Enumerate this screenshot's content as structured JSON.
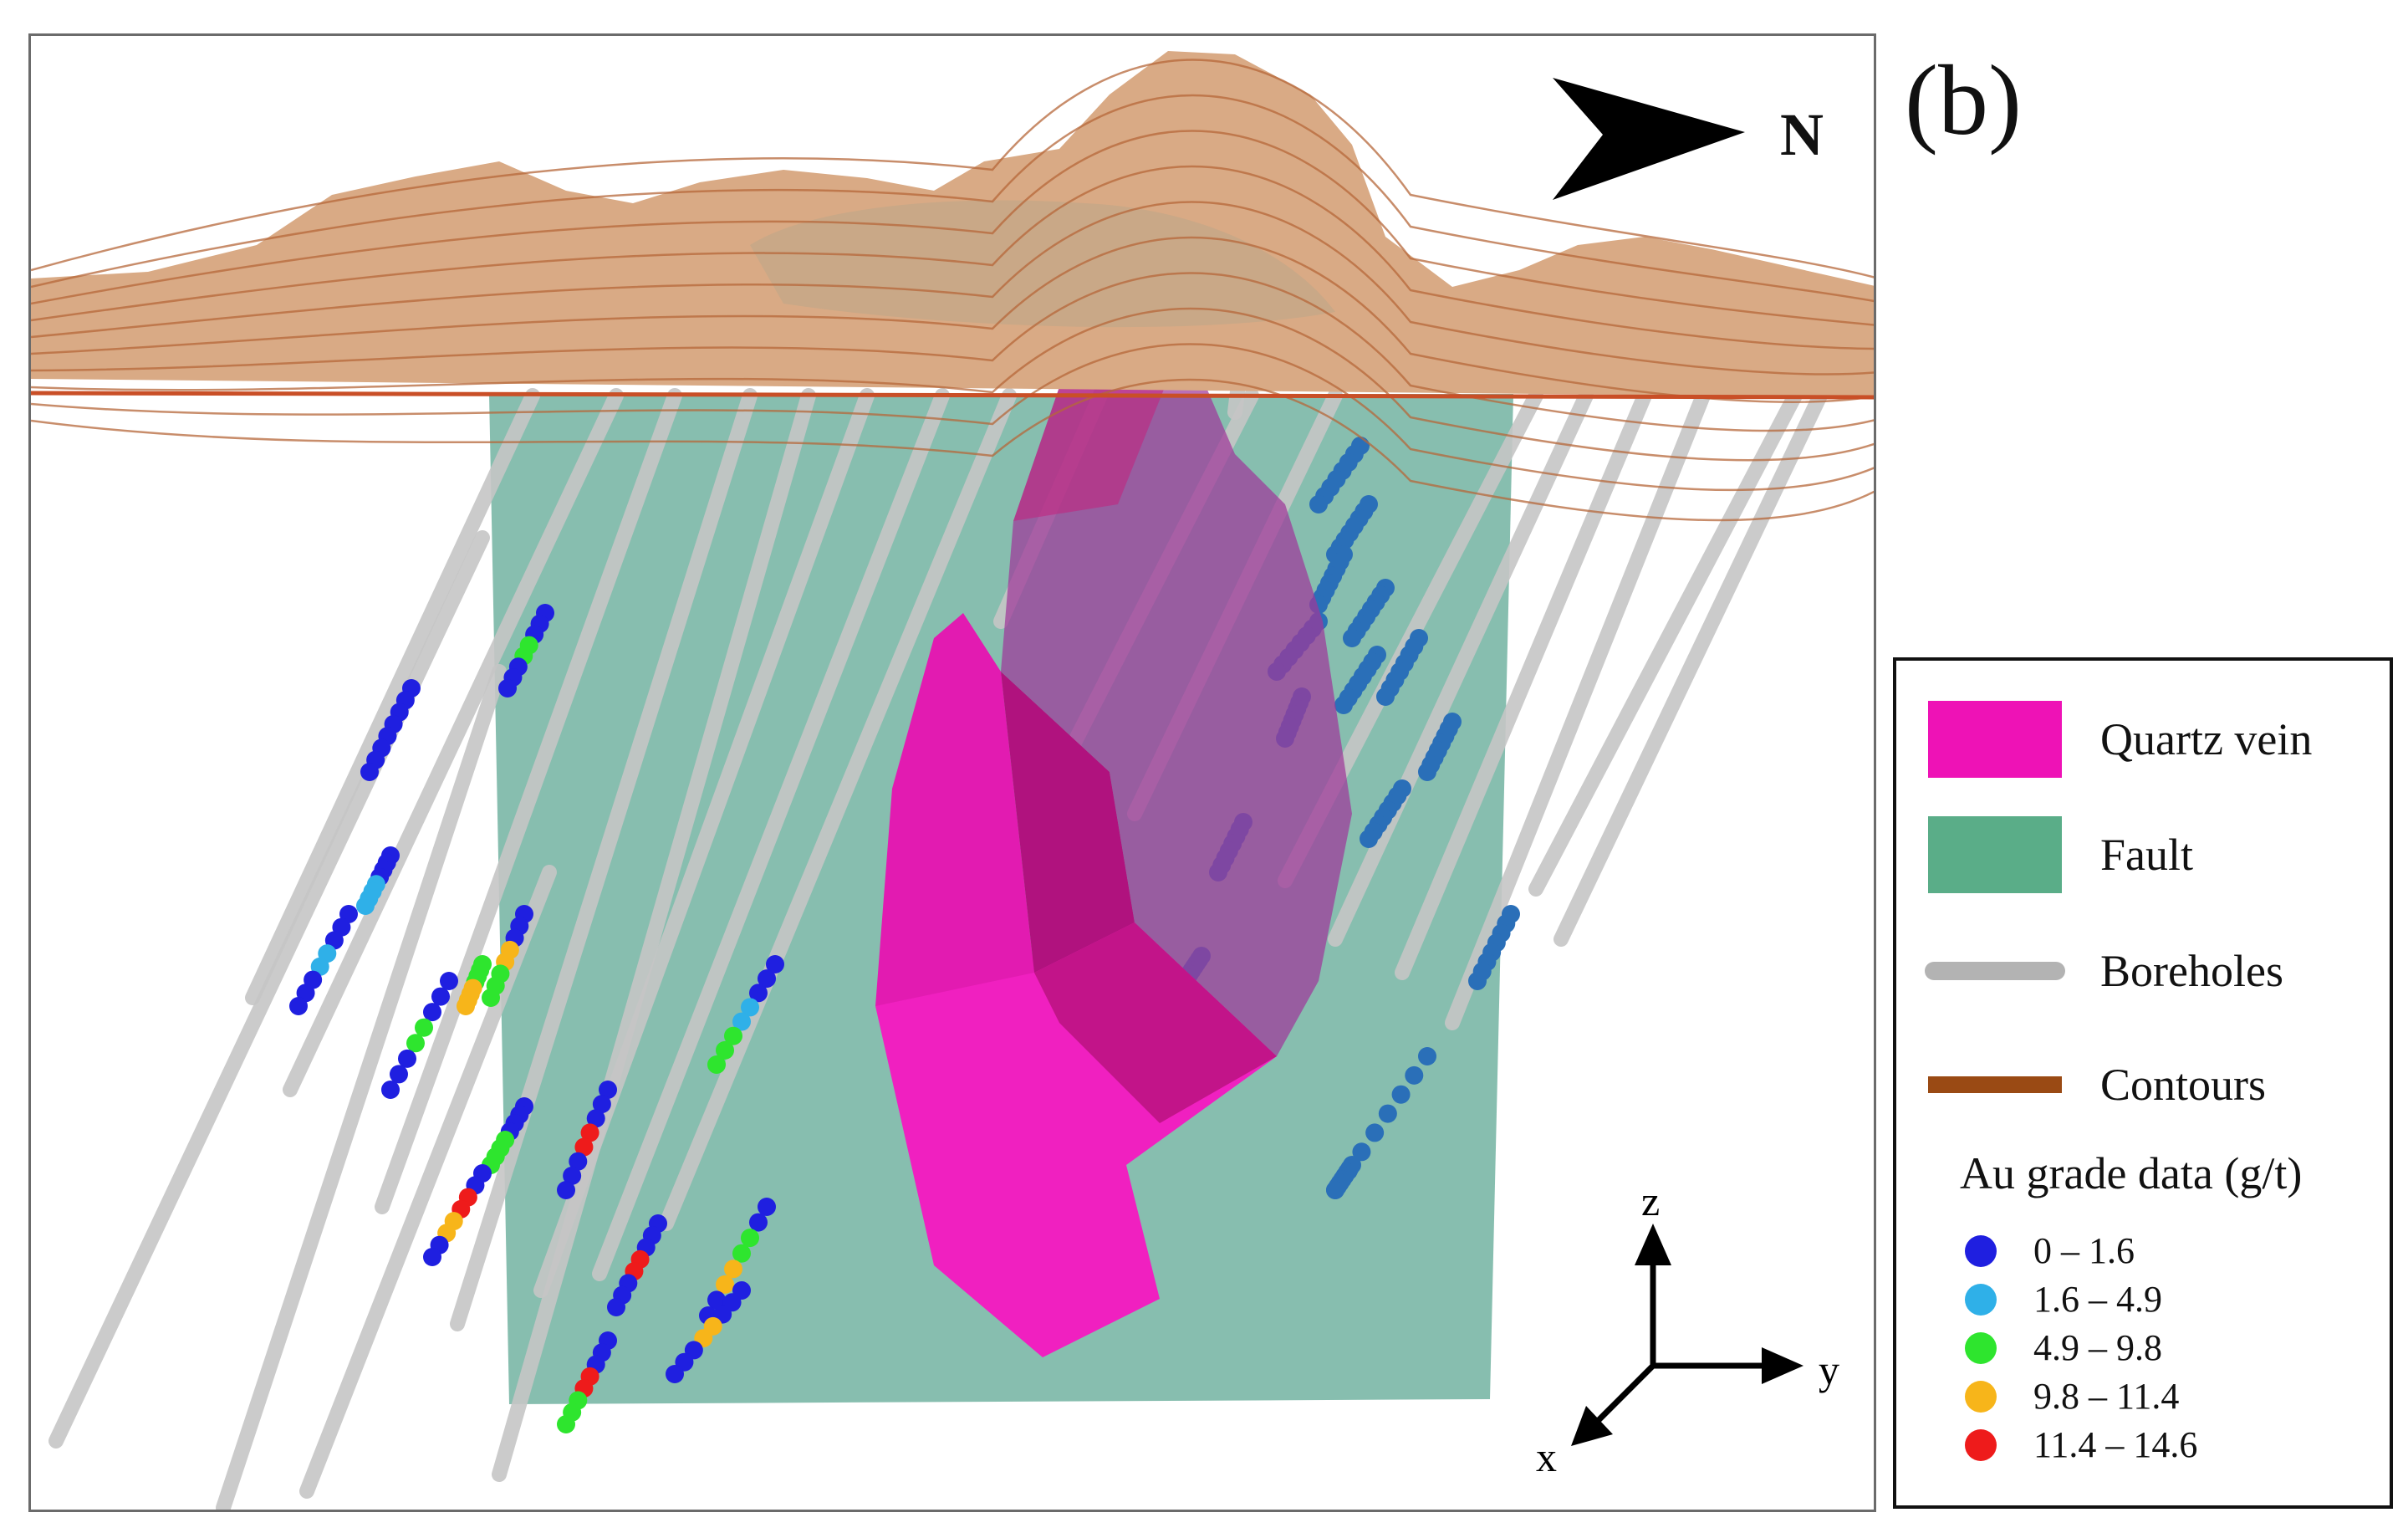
{
  "figure": {
    "panel_label": "(b)",
    "north_label": "N",
    "axes": {
      "x": "x",
      "y": "y",
      "z": "z"
    }
  },
  "legend": {
    "items": [
      {
        "label": "Quartz vein",
        "color": "#ee12b6",
        "kind": "swatch"
      },
      {
        "label": "Fault",
        "color": "#5aad88",
        "kind": "swatch"
      },
      {
        "label": "Boreholes",
        "color": "#b3b3b3",
        "kind": "line"
      },
      {
        "label": "Contours",
        "color": "#9a4a14",
        "kind": "line"
      }
    ],
    "grade_title": "Au grade data (g/t)",
    "grades": [
      {
        "label": "0 – 1.6",
        "color": "#1f1fe0"
      },
      {
        "label": "1.6 – 4.9",
        "color": "#2fb0e8"
      },
      {
        "label": "4.9 – 9.8",
        "color": "#2ee52e"
      },
      {
        "label": "9.8 – 11.4",
        "color": "#f7b51a"
      },
      {
        "label": "11.4 – 14.6",
        "color": "#ee1b1b"
      }
    ]
  },
  "colors": {
    "terrain": "#d9aa85",
    "fault": "#7db8a8",
    "vein": "#ee12b6",
    "borehole": "#c6c6c6"
  }
}
